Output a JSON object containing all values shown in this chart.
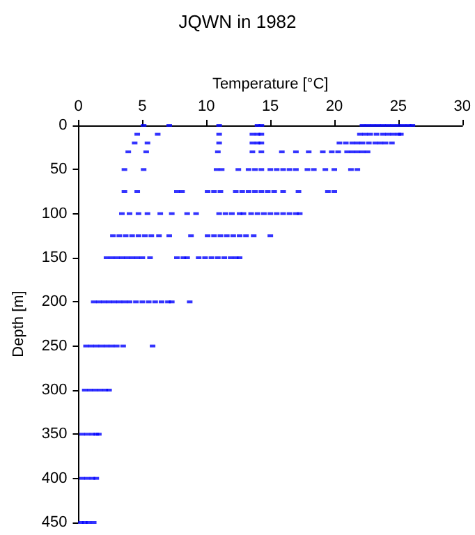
{
  "chart_data": {
    "type": "scatter",
    "title": "JQWN in 1982",
    "xlabel": "Temperature [°C]",
    "ylabel": "Depth [m]",
    "xlim": [
      0,
      30
    ],
    "xticks": [
      0,
      5,
      10,
      15,
      20,
      25,
      30
    ],
    "ylim": [
      450,
      0
    ],
    "yticks": [
      0,
      50,
      100,
      150,
      200,
      250,
      300,
      350,
      400,
      450
    ],
    "grid": false,
    "marker": "square",
    "series": [
      {
        "color": "#0000ff",
        "x": [
          5.1,
          7.1,
          11.0,
          14.0,
          14.3,
          22.2,
          22.6,
          23.0,
          23.4,
          23.8,
          24.2,
          24.6,
          25.0,
          25.4,
          25.8,
          26.1
        ],
        "values": [
          0,
          0,
          0,
          0,
          0,
          0,
          0,
          0,
          0,
          0,
          0,
          0,
          0,
          0,
          0,
          0
        ]
      },
      {
        "color": "#0000ff",
        "x": [
          4.6,
          6.2,
          11.0,
          13.6,
          14.0,
          14.3,
          22.0,
          22.4,
          22.8,
          23.3,
          23.8,
          24.2,
          24.6,
          25.0,
          25.2
        ],
        "values": [
          10,
          10,
          10,
          10,
          10,
          10,
          10,
          10,
          10,
          10,
          10,
          10,
          10,
          10,
          10
        ]
      },
      {
        "color": "#0000ff",
        "x": [
          4.4,
          5.4,
          11.0,
          13.6,
          14.0,
          14.3,
          20.4,
          20.9,
          21.4,
          21.8,
          22.2,
          22.7,
          23.2,
          23.6,
          24.0,
          24.5
        ],
        "values": [
          20,
          20,
          20,
          20,
          20,
          20,
          20,
          20,
          20,
          20,
          20,
          20,
          20,
          20,
          20,
          20
        ]
      },
      {
        "color": "#0000ff",
        "x": [
          3.9,
          5.3,
          10.9,
          13.6,
          14.3,
          15.9,
          17.0,
          18.0,
          19.1,
          19.8,
          20.3,
          21.0,
          21.4,
          21.8,
          22.2,
          22.6
        ],
        "values": [
          30,
          30,
          30,
          30,
          30,
          30,
          30,
          30,
          30,
          30,
          30,
          30,
          30,
          30,
          30,
          30
        ]
      },
      {
        "color": "#0000ff",
        "x": [
          3.6,
          5.1,
          10.8,
          11.2,
          12.5,
          13.3,
          13.8,
          14.3,
          15.0,
          15.5,
          16.0,
          16.5,
          17.0,
          17.9,
          18.4,
          19.3,
          20.0,
          21.3,
          21.8
        ],
        "values": [
          50,
          50,
          50,
          50,
          50,
          50,
          50,
          50,
          50,
          50,
          50,
          50,
          50,
          50,
          50,
          50,
          50,
          50,
          50
        ]
      },
      {
        "color": "#0000ff",
        "x": [
          3.6,
          4.6,
          7.7,
          8.1,
          10.1,
          10.6,
          11.1,
          12.3,
          12.8,
          13.3,
          13.8,
          14.3,
          14.8,
          15.3,
          16.0,
          17.2,
          19.5,
          20.0
        ],
        "values": [
          75,
          75,
          75,
          75,
          75,
          75,
          75,
          75,
          75,
          75,
          75,
          75,
          75,
          75,
          75,
          75,
          75,
          75
        ]
      },
      {
        "color": "#0000ff",
        "x": [
          3.4,
          4.0,
          4.7,
          5.4,
          6.4,
          7.3,
          8.5,
          9.2,
          11.0,
          11.5,
          12.0,
          12.6,
          12.9,
          13.5,
          14.0,
          14.5,
          15.0,
          15.5,
          16.0,
          16.5,
          17.0,
          17.3
        ],
        "values": [
          100,
          100,
          100,
          100,
          100,
          100,
          100,
          100,
          100,
          100,
          100,
          100,
          100,
          100,
          100,
          100,
          100,
          100,
          100,
          100,
          100,
          100
        ]
      },
      {
        "color": "#0000ff",
        "x": [
          2.7,
          3.2,
          3.7,
          4.2,
          4.7,
          5.2,
          5.7,
          6.3,
          7.1,
          8.8,
          10.1,
          10.6,
          11.1,
          11.6,
          12.1,
          12.6,
          13.1,
          13.7,
          15.0
        ],
        "values": [
          125,
          125,
          125,
          125,
          125,
          125,
          125,
          125,
          125,
          125,
          125,
          125,
          125,
          125,
          125,
          125,
          125,
          125,
          125
        ]
      },
      {
        "color": "#0000ff",
        "x": [
          2.2,
          2.6,
          3.0,
          3.4,
          3.8,
          4.2,
          4.6,
          5.0,
          5.6,
          7.7,
          8.2,
          8.5,
          9.4,
          9.9,
          10.4,
          10.9,
          11.4,
          11.9,
          12.3,
          12.6
        ],
        "values": [
          150,
          150,
          150,
          150,
          150,
          150,
          150,
          150,
          150,
          150,
          150,
          150,
          150,
          150,
          150,
          150,
          150,
          150,
          150,
          150
        ]
      },
      {
        "color": "#0000ff",
        "x": [
          1.2,
          1.6,
          2.0,
          2.4,
          2.8,
          3.2,
          3.6,
          4.0,
          4.5,
          5.0,
          5.5,
          6.0,
          6.5,
          7.0,
          7.3,
          8.7
        ],
        "values": [
          200,
          200,
          200,
          200,
          200,
          200,
          200,
          200,
          200,
          200,
          200,
          200,
          200,
          200,
          200,
          200
        ]
      },
      {
        "color": "#0000ff",
        "x": [
          0.6,
          1.0,
          1.4,
          1.8,
          2.2,
          2.6,
          3.0,
          3.5,
          5.8
        ],
        "values": [
          250,
          250,
          250,
          250,
          250,
          250,
          250,
          250,
          250
        ]
      },
      {
        "color": "#0000ff",
        "x": [
          0.5,
          0.9,
          1.3,
          1.7,
          2.1,
          2.4
        ],
        "values": [
          300,
          300,
          300,
          300,
          300,
          300
        ]
      },
      {
        "color": "#0000ff",
        "x": [
          0.3,
          0.7,
          1.1,
          1.4,
          1.6
        ],
        "values": [
          350,
          350,
          350,
          350,
          350
        ]
      },
      {
        "color": "#0000ff",
        "x": [
          0.3,
          0.7,
          1.1,
          1.4
        ],
        "values": [
          400,
          400,
          400,
          400
        ]
      },
      {
        "color": "#0000ff",
        "x": [
          0.2,
          0.5,
          0.8,
          1.2
        ],
        "values": [
          450,
          450,
          450,
          450
        ]
      }
    ]
  }
}
